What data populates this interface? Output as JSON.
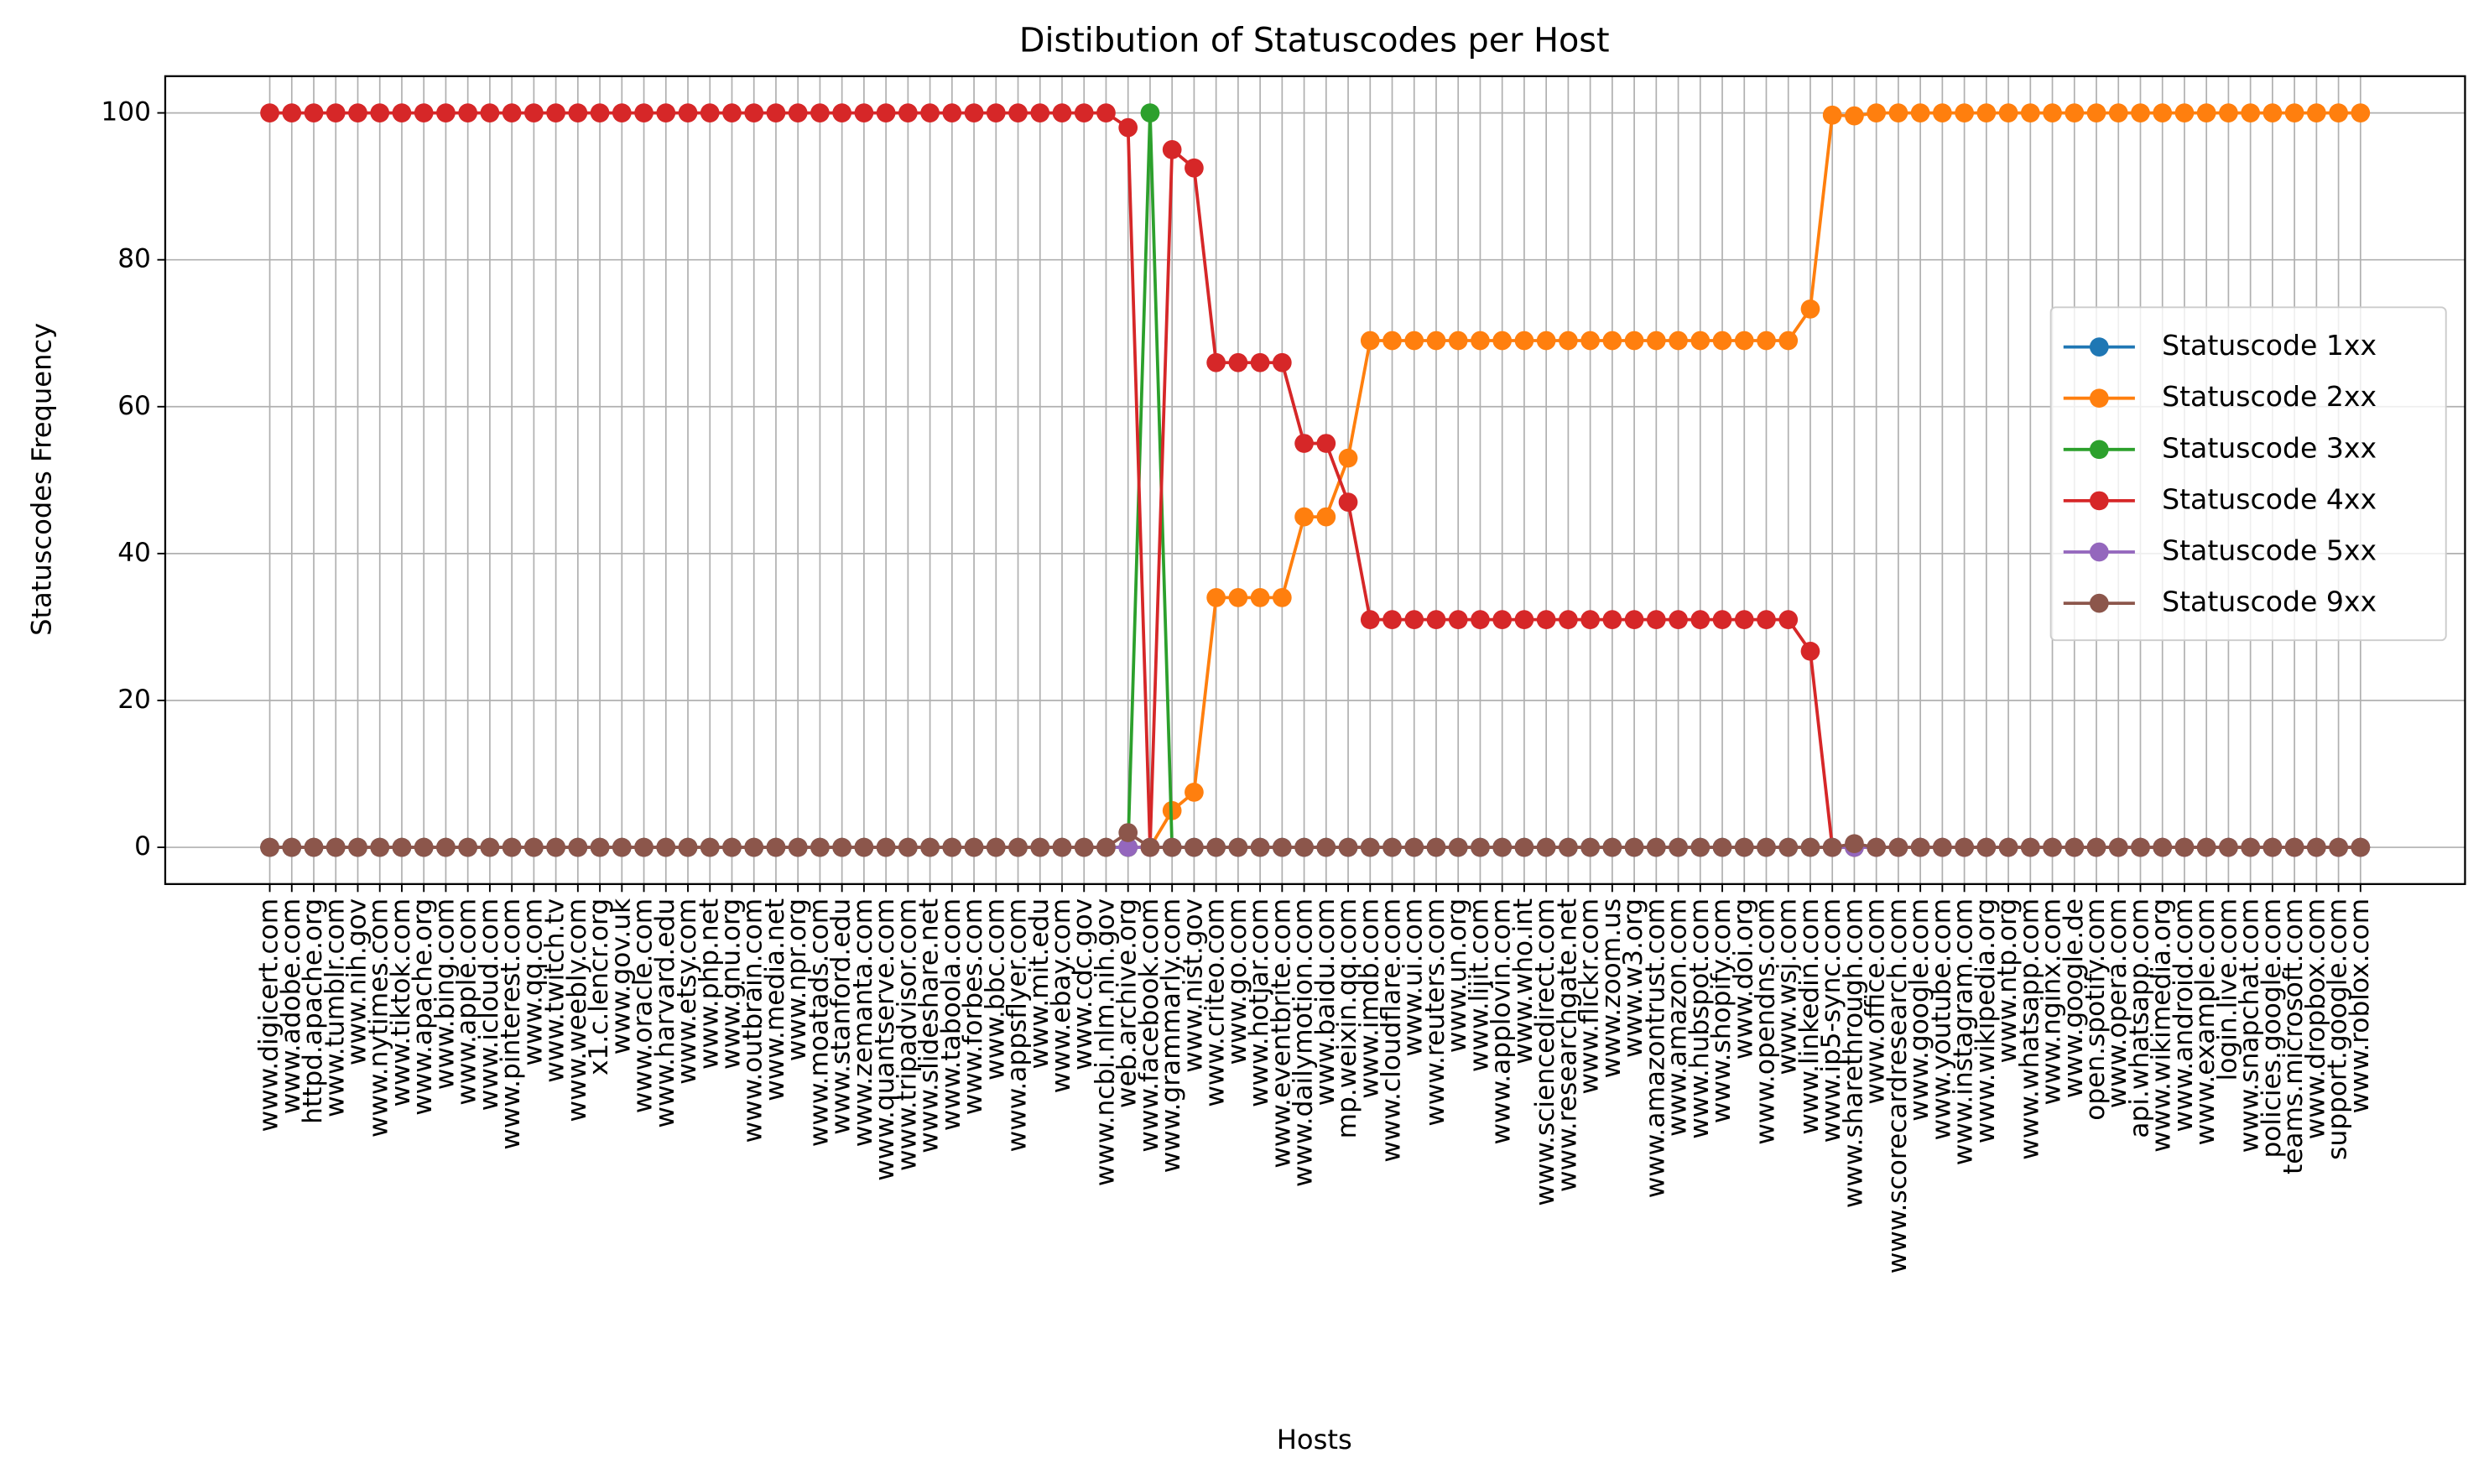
{
  "chart_data": {
    "type": "line",
    "title": "Distibution of Statuscodes per Host",
    "x_label": "Hosts",
    "y_label": "Statuscodes Frequency",
    "categories": [
      "www.digicert.com",
      "www.adobe.com",
      "httpd.apache.org",
      "www.tumblr.com",
      "www.nih.gov",
      "www.nytimes.com",
      "www.tiktok.com",
      "www.apache.org",
      "www.bing.com",
      "www.apple.com",
      "www.icloud.com",
      "www.pinterest.com",
      "www.qq.com",
      "www.twitch.tv",
      "www.weebly.com",
      "x1.c.lencr.org",
      "www.gov.uk",
      "www.oracle.com",
      "www.harvard.edu",
      "www.etsy.com",
      "www.php.net",
      "www.gnu.org",
      "www.outbrain.com",
      "www.media.net",
      "www.npr.org",
      "www.moatads.com",
      "www.stanford.edu",
      "www.zemanta.com",
      "www.quantserve.com",
      "www.tripadvisor.com",
      "www.slideshare.net",
      "www.taboola.com",
      "www.forbes.com",
      "www.bbc.com",
      "www.appsflyer.com",
      "www.mit.edu",
      "www.ebay.com",
      "www.cdc.gov",
      "www.ncbi.nlm.nih.gov",
      "web.archive.org",
      "www.facebook.com",
      "www.grammarly.com",
      "www.nist.gov",
      "www.criteo.com",
      "www.go.com",
      "www.hotjar.com",
      "www.eventbrite.com",
      "www.dailymotion.com",
      "www.baidu.com",
      "mp.weixin.qq.com",
      "www.imdb.com",
      "www.cloudflare.com",
      "www.ui.com",
      "www.reuters.com",
      "www.un.org",
      "www.lijit.com",
      "www.applovin.com",
      "www.who.int",
      "www.sciencedirect.com",
      "www.researchgate.net",
      "www.flickr.com",
      "www.zoom.us",
      "www.w3.org",
      "www.amazontrust.com",
      "www.amazon.com",
      "www.hubspot.com",
      "www.shopify.com",
      "www.doi.org",
      "www.opendns.com",
      "www.wsj.com",
      "www.linkedin.com",
      "www.ip5-sync.com",
      "www.sharethrough.com",
      "www.office.com",
      "www.scorecardresearch.com",
      "www.google.com",
      "www.youtube.com",
      "www.instagram.com",
      "www.wikipedia.org",
      "www.ntp.org",
      "www.whatsapp.com",
      "www.nginx.com",
      "www.google.de",
      "open.spotify.com",
      "www.opera.com",
      "api.whatsapp.com",
      "www.wikimedia.org",
      "www.android.com",
      "www.example.com",
      "login.live.com",
      "www.snapchat.com",
      "policies.google.com",
      "teams.microsoft.com",
      "www.dropbox.com",
      "support.google.com",
      "www.roblox.com"
    ],
    "series": [
      {
        "name": "Statuscode 1xx",
        "color": "#1f77b4",
        "values": [
          0,
          0,
          0,
          0,
          0,
          0,
          0,
          0,
          0,
          0,
          0,
          0,
          0,
          0,
          0,
          0,
          0,
          0,
          0,
          0,
          0,
          0,
          0,
          0,
          0,
          0,
          0,
          0,
          0,
          0,
          0,
          0,
          0,
          0,
          0,
          0,
          0,
          0,
          0,
          0,
          0,
          0,
          0,
          0,
          0,
          0,
          0,
          0,
          0,
          0,
          0,
          0,
          0,
          0,
          0,
          0,
          0,
          0,
          0,
          0,
          0,
          0,
          0,
          0,
          0,
          0,
          0,
          0,
          0,
          0,
          0,
          0,
          0,
          0,
          0,
          0,
          0,
          0,
          0,
          0,
          0,
          0,
          0,
          0,
          0,
          0,
          0,
          0,
          0,
          0,
          0,
          0,
          0,
          0,
          0,
          0
        ]
      },
      {
        "name": "Statuscode 2xx",
        "color": "#ff7f0e",
        "values": [
          0,
          0,
          0,
          0,
          0,
          0,
          0,
          0,
          0,
          0,
          0,
          0,
          0,
          0,
          0,
          0,
          0,
          0,
          0,
          0,
          0,
          0,
          0,
          0,
          0,
          0,
          0,
          0,
          0,
          0,
          0,
          0,
          0,
          0,
          0,
          0,
          0,
          0,
          0,
          0,
          0,
          5,
          7.5,
          34,
          34,
          34,
          34,
          45,
          45,
          53,
          69,
          69,
          69,
          69,
          69,
          69,
          69,
          69,
          69,
          69,
          69,
          69,
          69,
          69,
          69,
          69,
          69,
          69,
          69,
          69,
          73.3,
          99.7,
          99.6,
          100,
          100,
          100,
          100,
          100,
          100,
          100,
          100,
          100,
          100,
          100,
          100,
          100,
          100,
          100,
          100,
          100,
          100,
          100,
          100,
          100,
          100,
          100
        ]
      },
      {
        "name": "Statuscode 3xx",
        "color": "#2ca02c",
        "values": [
          0,
          0,
          0,
          0,
          0,
          0,
          0,
          0,
          0,
          0,
          0,
          0,
          0,
          0,
          0,
          0,
          0,
          0,
          0,
          0,
          0,
          0,
          0,
          0,
          0,
          0,
          0,
          0,
          0,
          0,
          0,
          0,
          0,
          0,
          0,
          0,
          0,
          0,
          0,
          0,
          100,
          0,
          0,
          0,
          0,
          0,
          0,
          0,
          0,
          0,
          0,
          0,
          0,
          0,
          0,
          0,
          0,
          0,
          0,
          0,
          0,
          0,
          0,
          0,
          0,
          0,
          0,
          0,
          0,
          0,
          0,
          0,
          0,
          0,
          0,
          0,
          0,
          0,
          0,
          0,
          0,
          0,
          0,
          0,
          0,
          0,
          0,
          0,
          0,
          0,
          0,
          0,
          0,
          0,
          0,
          0
        ]
      },
      {
        "name": "Statuscode 4xx",
        "color": "#d62728",
        "values": [
          100,
          100,
          100,
          100,
          100,
          100,
          100,
          100,
          100,
          100,
          100,
          100,
          100,
          100,
          100,
          100,
          100,
          100,
          100,
          100,
          100,
          100,
          100,
          100,
          100,
          100,
          100,
          100,
          100,
          100,
          100,
          100,
          100,
          100,
          100,
          100,
          100,
          100,
          100,
          98,
          0,
          95,
          92.5,
          66,
          66,
          66,
          66,
          55,
          55,
          47,
          31,
          31,
          31,
          31,
          31,
          31,
          31,
          31,
          31,
          31,
          31,
          31,
          31,
          31,
          31,
          31,
          31,
          31,
          31,
          31,
          26.7,
          0,
          0,
          0,
          0,
          0,
          0,
          0,
          0,
          0,
          0,
          0,
          0,
          0,
          0,
          0,
          0,
          0,
          0,
          0,
          0,
          0,
          0,
          0,
          0,
          0
        ]
      },
      {
        "name": "Statuscode 5xx",
        "color": "#9467bd",
        "values": [
          0,
          0,
          0,
          0,
          0,
          0,
          0,
          0,
          0,
          0,
          0,
          0,
          0,
          0,
          0,
          0,
          0,
          0,
          0,
          0,
          0,
          0,
          0,
          0,
          0,
          0,
          0,
          0,
          0,
          0,
          0,
          0,
          0,
          0,
          0,
          0,
          0,
          0,
          0,
          0,
          0,
          0,
          0,
          0,
          0,
          0,
          0,
          0,
          0,
          0,
          0,
          0,
          0,
          0,
          0,
          0,
          0,
          0,
          0,
          0,
          0,
          0,
          0,
          0,
          0,
          0,
          0,
          0,
          0,
          0,
          0,
          0,
          0,
          0,
          0,
          0,
          0,
          0,
          0,
          0,
          0,
          0,
          0,
          0,
          0,
          0,
          0,
          0,
          0,
          0,
          0,
          0,
          0,
          0,
          0,
          0
        ]
      },
      {
        "name": "Statuscode 9xx",
        "color": "#8c564b",
        "values": [
          0,
          0,
          0,
          0,
          0,
          0,
          0,
          0,
          0,
          0,
          0,
          0,
          0,
          0,
          0,
          0,
          0,
          0,
          0,
          0,
          0,
          0,
          0,
          0,
          0,
          0,
          0,
          0,
          0,
          0,
          0,
          0,
          0,
          0,
          0,
          0,
          0,
          0,
          0,
          2,
          0,
          0,
          0,
          0,
          0,
          0,
          0,
          0,
          0,
          0,
          0,
          0,
          0,
          0,
          0,
          0,
          0,
          0,
          0,
          0,
          0,
          0,
          0,
          0,
          0,
          0,
          0,
          0,
          0,
          0,
          0,
          0,
          0.5,
          0,
          0,
          0,
          0,
          0,
          0,
          0,
          0,
          0,
          0,
          0,
          0,
          0,
          0,
          0,
          0,
          0,
          0,
          0,
          0,
          0,
          0,
          0
        ]
      }
    ],
    "ylim": [
      -5,
      105
    ],
    "yticks": [
      0,
      20,
      40,
      60,
      80,
      100
    ],
    "grid": true,
    "legend": "center right",
    "markers": true
  }
}
